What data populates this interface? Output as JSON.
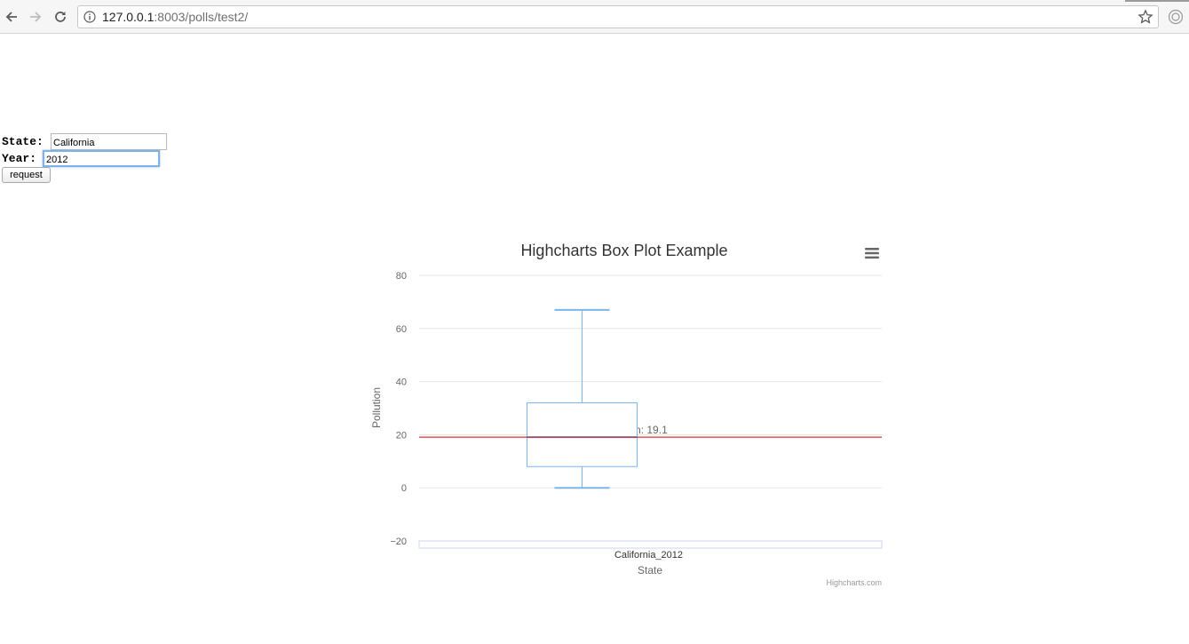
{
  "browser": {
    "url_host": "127.0.0.1",
    "url_rest": ":8003/polls/test2/",
    "icons": [
      "back-icon",
      "forward-icon",
      "reload-icon",
      "info-icon",
      "star-icon",
      "extension-icon"
    ]
  },
  "form": {
    "state_label": "State:",
    "state_value": "California",
    "year_label": "Year:",
    "year_value": "2012",
    "submit_label": "request"
  },
  "chart_data": {
    "type": "boxplot",
    "title": "Highcharts Box Plot Example",
    "xlabel": "State",
    "ylabel": "Pollution",
    "categories": [
      "California_2012"
    ],
    "ylim": [
      -20,
      80
    ],
    "yticks": [
      -20,
      0,
      20,
      40,
      60,
      80
    ],
    "boxes": [
      {
        "low": 0,
        "q1": 8,
        "median": 19.1,
        "q3": 32,
        "high": 67
      }
    ],
    "plot_line": {
      "value": 19.1,
      "label": "Theoretical mean: 19.1",
      "color": "#cc0000"
    },
    "credits": "Highcharts.com",
    "colors": {
      "box": "#7cb5ec",
      "grid": "#e6e6e6",
      "text": "#333333"
    },
    "grid": true,
    "menu_icon": "hamburger-menu-icon"
  }
}
